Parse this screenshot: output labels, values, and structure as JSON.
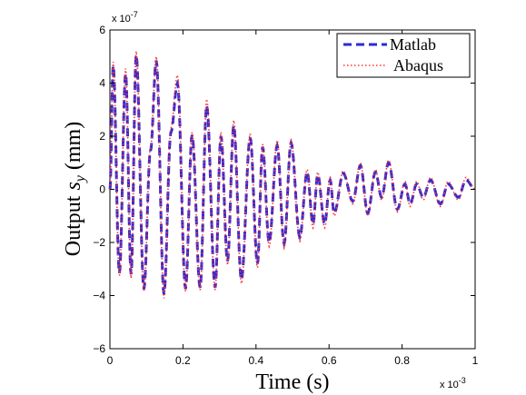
{
  "chart_data": {
    "type": "line",
    "xlabel": "Time (s)",
    "ylabel_prefix": "Output",
    "ylabel_symbol": "s",
    "ylabel_subscript": "y",
    "ylabel_suffix": "(mm)",
    "x_scale_label": "x 10",
    "x_scale_exp": "-3",
    "y_scale_label": "x 10",
    "y_scale_exp": "-7",
    "xlim": [
      0,
      1
    ],
    "ylim": [
      -6,
      6
    ],
    "x_ticks": [
      "0",
      "0.2",
      "0.4",
      "0.6",
      "0.8",
      "1"
    ],
    "y_ticks": [
      "−6",
      "−4",
      "−2",
      "0",
      "2",
      "4",
      "6"
    ],
    "grid": false,
    "legend_position": "top-right",
    "x_unit_multiplier": "1e-3",
    "y_unit_multiplier": "1e-7",
    "series": [
      {
        "name": "Matlab",
        "color": "#2b2bd6",
        "style": "dashed",
        "extrema": [
          [
            0.0,
            0.0
          ],
          [
            0.009,
            4.65
          ],
          [
            0.026,
            -3.15
          ],
          [
            0.043,
            4.35
          ],
          [
            0.058,
            -3.2
          ],
          [
            0.072,
            5.05
          ],
          [
            0.093,
            -3.75
          ],
          [
            0.111,
            1.45
          ],
          [
            0.127,
            4.85
          ],
          [
            0.148,
            -3.95
          ],
          [
            0.167,
            2.15
          ],
          [
            0.185,
            4.0
          ],
          [
            0.207,
            -3.75
          ],
          [
            0.225,
            2.05
          ],
          [
            0.247,
            -3.7
          ],
          [
            0.265,
            3.15
          ],
          [
            0.288,
            -3.7
          ],
          [
            0.304,
            2.0
          ],
          [
            0.322,
            -2.7
          ],
          [
            0.339,
            2.4
          ],
          [
            0.36,
            -3.4
          ],
          [
            0.384,
            1.95
          ],
          [
            0.404,
            -2.8
          ],
          [
            0.418,
            1.6
          ],
          [
            0.436,
            -2.0
          ],
          [
            0.458,
            1.65
          ],
          [
            0.477,
            -2.05
          ],
          [
            0.496,
            1.75
          ],
          [
            0.52,
            -1.8
          ],
          [
            0.54,
            0.65
          ],
          [
            0.556,
            -1.3
          ],
          [
            0.569,
            0.55
          ],
          [
            0.588,
            -1.3
          ],
          [
            0.603,
            0.35
          ],
          [
            0.614,
            -0.9
          ],
          [
            0.639,
            0.6
          ],
          [
            0.665,
            -0.45
          ],
          [
            0.686,
            0.9
          ],
          [
            0.706,
            -0.9
          ],
          [
            0.727,
            0.65
          ],
          [
            0.744,
            -0.3
          ],
          [
            0.763,
            1.0
          ],
          [
            0.787,
            -0.75
          ],
          [
            0.808,
            0.2
          ],
          [
            0.822,
            -0.55
          ],
          [
            0.84,
            0.2
          ],
          [
            0.858,
            -0.3
          ],
          [
            0.878,
            0.35
          ],
          [
            0.905,
            -0.55
          ],
          [
            0.926,
            0.2
          ],
          [
            0.954,
            -0.3
          ],
          [
            0.975,
            0.35
          ],
          [
            1.0,
            0.0
          ]
        ]
      },
      {
        "name": "Abaqus",
        "color": "#ff3333",
        "style": "dotted",
        "extrema": [
          [
            0.0,
            0.0
          ],
          [
            0.009,
            4.8
          ],
          [
            0.026,
            -3.25
          ],
          [
            0.043,
            4.55
          ],
          [
            0.058,
            -3.35
          ],
          [
            0.072,
            5.2
          ],
          [
            0.093,
            -3.85
          ],
          [
            0.111,
            1.55
          ],
          [
            0.127,
            5.0
          ],
          [
            0.148,
            -4.1
          ],
          [
            0.167,
            2.3
          ],
          [
            0.185,
            4.3
          ],
          [
            0.207,
            -3.85
          ],
          [
            0.225,
            2.15
          ],
          [
            0.247,
            -3.8
          ],
          [
            0.265,
            3.4
          ],
          [
            0.288,
            -3.8
          ],
          [
            0.304,
            2.15
          ],
          [
            0.322,
            -2.85
          ],
          [
            0.339,
            2.6
          ],
          [
            0.36,
            -3.55
          ],
          [
            0.384,
            2.1
          ],
          [
            0.404,
            -2.95
          ],
          [
            0.418,
            1.7
          ],
          [
            0.436,
            -2.15
          ],
          [
            0.458,
            1.85
          ],
          [
            0.477,
            -2.2
          ],
          [
            0.496,
            1.85
          ],
          [
            0.52,
            -1.95
          ],
          [
            0.54,
            0.75
          ],
          [
            0.556,
            -1.45
          ],
          [
            0.569,
            0.65
          ],
          [
            0.588,
            -1.45
          ],
          [
            0.603,
            0.45
          ],
          [
            0.614,
            -1.0
          ],
          [
            0.639,
            0.7
          ],
          [
            0.665,
            -0.55
          ],
          [
            0.686,
            1.0
          ],
          [
            0.706,
            -1.0
          ],
          [
            0.727,
            0.75
          ],
          [
            0.744,
            -0.4
          ],
          [
            0.763,
            1.1
          ],
          [
            0.787,
            -0.85
          ],
          [
            0.808,
            0.3
          ],
          [
            0.822,
            -0.65
          ],
          [
            0.84,
            0.3
          ],
          [
            0.858,
            -0.4
          ],
          [
            0.878,
            0.45
          ],
          [
            0.905,
            -0.65
          ],
          [
            0.926,
            0.3
          ],
          [
            0.954,
            -0.4
          ],
          [
            0.975,
            0.45
          ],
          [
            1.0,
            0.0
          ]
        ]
      }
    ]
  }
}
